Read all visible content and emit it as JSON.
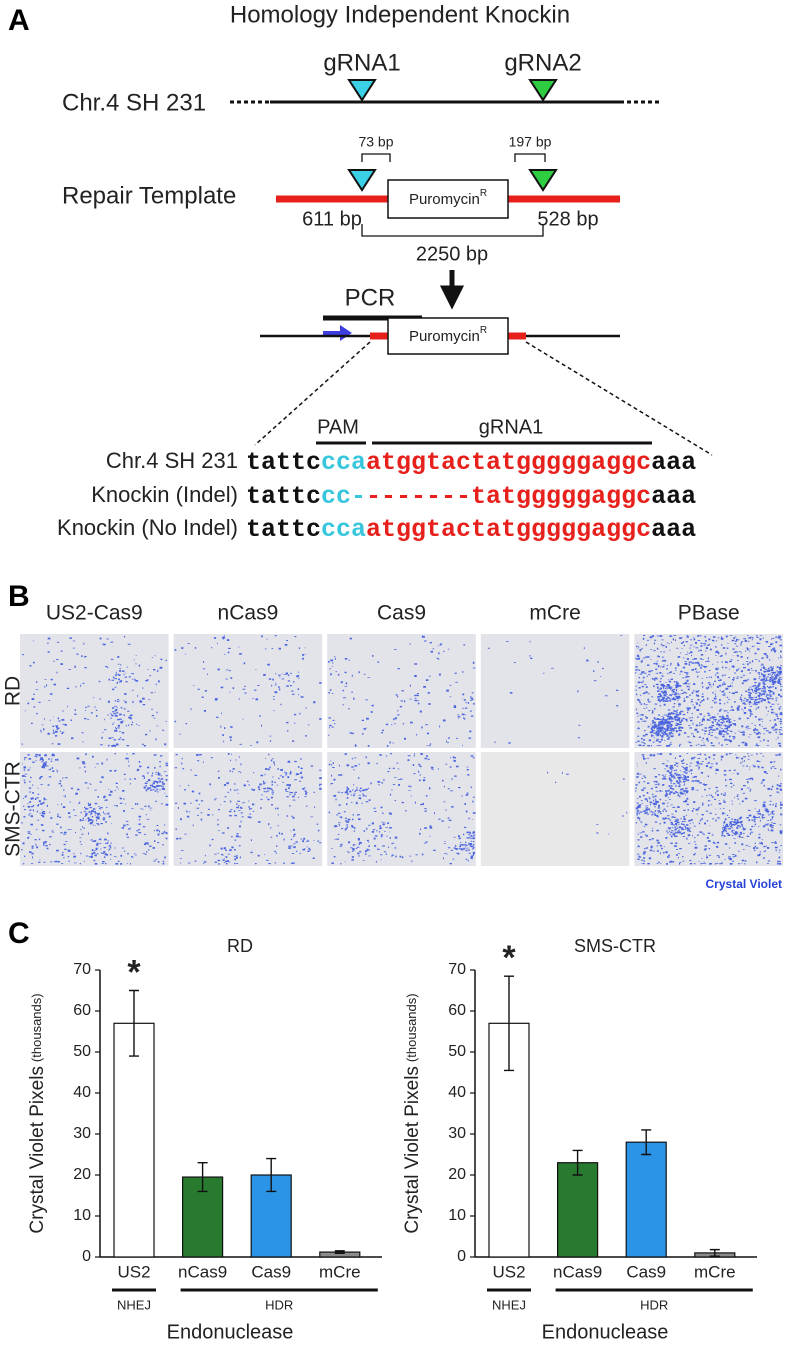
{
  "panel_a": {
    "label": "A",
    "title": "Homology Independent Knockin",
    "grna1": "gRNA1",
    "grna2": "gRNA2",
    "chromosome_label": "Chr.4 SH 231",
    "repair_template_label": "Repair Template",
    "cassette": "Puromycin",
    "cassette_superscript": "R",
    "bp_left_offset": "73 bp",
    "bp_right_offset": "197 bp",
    "bp_left_arm": "611 bp",
    "bp_right_arm": "528 bp",
    "bp_span": "2250 bp",
    "pcr": "PCR",
    "pam_label": "PAM",
    "grna1_label": "gRNA1",
    "sequences": [
      {
        "label": "Chr.4 SH 231",
        "parts": [
          "tattc",
          "cca",
          "atggtactatgggggaggc",
          "aaa"
        ]
      },
      {
        "label": "Knockin (Indel)",
        "parts": [
          "tattc",
          "cc-",
          "-------tatgggggaggc",
          "aaa"
        ]
      },
      {
        "label": "Knockin (No Indel)",
        "parts": [
          "tattc",
          "cca",
          "atggtactatgggggaggc",
          "aaa"
        ]
      }
    ]
  },
  "panel_b": {
    "label": "B",
    "columns": [
      "US2-Cas9",
      "nCas9",
      "Cas9",
      "mCre",
      "PBase"
    ],
    "rows": [
      "RD",
      "SMS-CTR"
    ],
    "stain": "Crystal Violet"
  },
  "panel_c": {
    "label": "C"
  },
  "chart_data": [
    {
      "type": "bar",
      "title": "RD",
      "y_label": "Crystal Violet Pixels",
      "y_label_unit": "(thousands)",
      "x_label": "Endonuclease",
      "categories": [
        "US2",
        "nCas9",
        "Cas9",
        "mCre"
      ],
      "values": [
        57,
        19.5,
        20,
        1.2
      ],
      "errors": [
        8,
        3.5,
        4,
        0.3
      ],
      "colors": [
        "#ffffff",
        "#277a2e",
        "#2b94e6",
        "#8c8c8c"
      ],
      "ylim": [
        0,
        70
      ],
      "yticks": [
        0,
        10,
        20,
        30,
        40,
        50,
        60,
        70
      ],
      "groups": [
        {
          "label": "NHEJ",
          "categories": [
            "US2"
          ]
        },
        {
          "label": "HDR",
          "categories": [
            "nCas9",
            "Cas9",
            "mCre"
          ]
        }
      ],
      "annotation": {
        "text": "*",
        "category": "US2"
      }
    },
    {
      "type": "bar",
      "title": "SMS-CTR",
      "y_label": "Crystal Violet Pixels",
      "y_label_unit": "(thousands)",
      "x_label": "Endonuclease",
      "categories": [
        "US2",
        "nCas9",
        "Cas9",
        "mCre"
      ],
      "values": [
        57,
        23,
        28,
        1
      ],
      "errors": [
        11.5,
        3,
        3,
        0.8
      ],
      "colors": [
        "#ffffff",
        "#277a2e",
        "#2b94e6",
        "#8c8c8c"
      ],
      "ylim": [
        0,
        70
      ],
      "yticks": [
        0,
        10,
        20,
        30,
        40,
        50,
        60,
        70
      ],
      "groups": [
        {
          "label": "NHEJ",
          "categories": [
            "US2"
          ]
        },
        {
          "label": "HDR",
          "categories": [
            "nCas9",
            "Cas9",
            "mCre"
          ]
        }
      ],
      "annotation": {
        "text": "*",
        "category": "US2"
      }
    }
  ]
}
